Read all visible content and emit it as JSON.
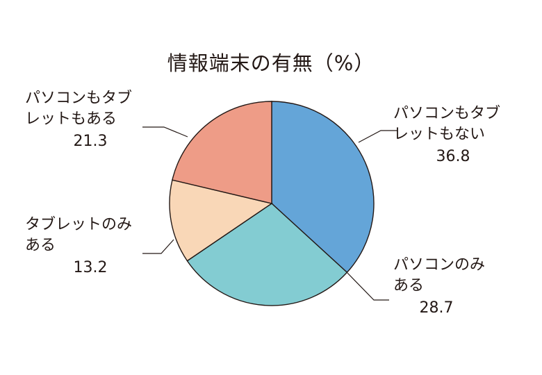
{
  "title": "情報端末の有無（%）",
  "chart_data": {
    "type": "pie",
    "title": "情報端末の有無（%）",
    "start": "12 o'clock",
    "direction": "clockwise",
    "slices": [
      {
        "label_lines": [
          "パソコンもタブ",
          "レットもない"
        ],
        "value": 36.8,
        "value_text": "36.8",
        "color": "#64a5d8"
      },
      {
        "label_lines": [
          "パソコンのみ",
          "ある"
        ],
        "value": 28.7,
        "value_text": "28.7",
        "color": "#83ccd2"
      },
      {
        "label_lines": [
          "タブレットのみ",
          "ある"
        ],
        "value": 13.2,
        "value_text": "13.2",
        "color": "#f9d7b7"
      },
      {
        "label_lines": [
          "パソコンもタブ",
          "レットもある"
        ],
        "value": 21.3,
        "value_text": "21.3",
        "color": "#ee9c87"
      }
    ]
  }
}
